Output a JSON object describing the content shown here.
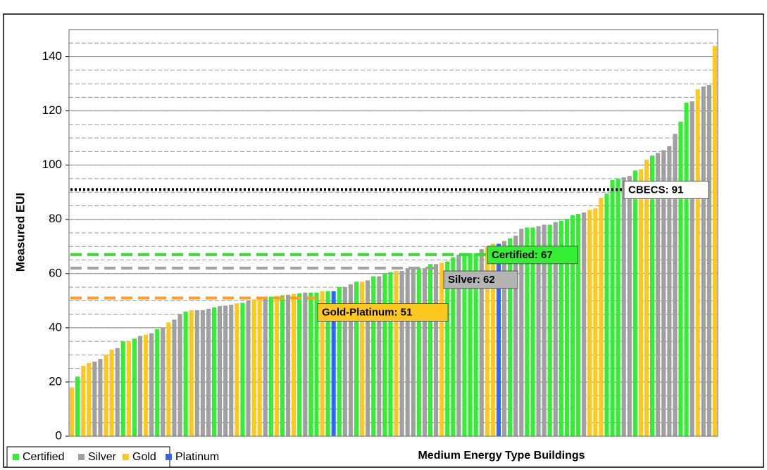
{
  "chart_data": {
    "type": "bar",
    "y_label": "Measured EUI",
    "x_label": "Medium Energy Type Buildings",
    "ylim": [
      0,
      150
    ],
    "yticks": [
      0,
      20,
      40,
      60,
      80,
      100,
      120,
      140
    ],
    "grid": true,
    "minor_grid_step": 5,
    "legend": "bottom-left",
    "series": [
      {
        "name": "Certified",
        "color": "#33ee33"
      },
      {
        "name": "Silver",
        "color": "#a0a0a0"
      },
      {
        "name": "Gold",
        "color": "#ffc81e"
      },
      {
        "name": "Platinum",
        "color": "#3366ff"
      }
    ],
    "values": [
      18,
      22,
      26,
      27,
      27.5,
      28.5,
      30,
      32,
      32.5,
      35,
      35,
      36,
      37,
      37.5,
      38,
      39.5,
      40,
      42,
      43,
      45,
      46,
      46.5,
      46.5,
      46.5,
      47,
      47.5,
      48,
      48.2,
      48.5,
      49,
      49.2,
      50,
      50.5,
      51,
      51.2,
      51.5,
      51.7,
      52,
      52.2,
      52.5,
      52.7,
      53,
      53,
      53,
      53.5,
      53.5,
      53.5,
      55,
      55,
      56,
      57,
      57,
      57.5,
      59,
      59,
      60,
      60.5,
      61,
      61,
      62,
      61.5,
      62,
      62,
      63.5,
      63.5,
      64,
      64.5,
      66,
      67,
      67.5,
      67.5,
      67.5,
      69,
      70,
      71,
      71,
      72,
      73,
      74,
      76.5,
      77,
      77,
      77.5,
      78,
      78,
      79,
      79.5,
      80,
      81.5,
      82,
      82.5,
      83.5,
      84,
      88,
      89.5,
      94.5,
      95,
      95.5,
      96,
      98,
      98.5,
      102,
      103.5,
      104.5,
      105.5,
      107,
      111.5,
      116,
      123,
      123.5,
      128,
      129,
      129.5,
      144
    ],
    "levels": [
      "Gold",
      "Certified",
      "Gold",
      "Gold",
      "Silver",
      "Silver",
      "Gold",
      "Gold",
      "Silver",
      "Certified",
      "Gold",
      "Certified",
      "Silver",
      "Gold",
      "Silver",
      "Certified",
      "Silver",
      "Gold",
      "Silver",
      "Silver",
      "Certified",
      "Gold",
      "Silver",
      "Silver",
      "Silver",
      "Certified",
      "Silver",
      "Silver",
      "Silver",
      "Gold",
      "Certified",
      "Silver",
      "Gold",
      "Gold",
      "Silver",
      "Certified",
      "Gold",
      "Certified",
      "Silver",
      "Gold",
      "Certified",
      "Silver",
      "Certified",
      "Certified",
      "Gold",
      "Certified",
      "Platinum",
      "Certified",
      "Silver",
      "Silver",
      "Certified",
      "Gold",
      "Silver",
      "Certified",
      "Silver",
      "Certified",
      "Certified",
      "Gold",
      "Silver",
      "Silver",
      "Silver",
      "Certified",
      "Silver",
      "Certified",
      "Silver",
      "Gold",
      "Certified",
      "Certified",
      "Silver",
      "Certified",
      "Certified",
      "Certified",
      "Silver",
      "Gold",
      "Gold",
      "Platinum",
      "Silver",
      "Certified",
      "Silver",
      "Silver",
      "Certified",
      "Certified",
      "Silver",
      "Silver",
      "Certified",
      "Silver",
      "Certified",
      "Certified",
      "Certified",
      "Certified",
      "Silver",
      "Gold",
      "Gold",
      "Gold",
      "Certified",
      "Certified",
      "Certified",
      "Silver",
      "Silver",
      "Certified",
      "Gold",
      "Gold",
      "Certified",
      "Silver",
      "Silver",
      "Silver",
      "Silver",
      "Certified",
      "Certified",
      "Silver",
      "Gold",
      "Silver",
      "Silver",
      "Gold"
    ],
    "reference_lines": [
      {
        "value": 91,
        "label": "CBECS: 91",
        "color": "#000000",
        "style": "dotted",
        "box": "#ffffff"
      },
      {
        "value": 67,
        "label": "Certified: 67",
        "color": "#33dd33",
        "style": "dashed",
        "box": "#33ee33"
      },
      {
        "value": 62,
        "label": "Silver: 62",
        "color": "#a0a0a0",
        "style": "dashed",
        "box": "#b4b4b4"
      },
      {
        "value": 51,
        "label": "Gold-Platinum: 51",
        "color": "#ffa020",
        "style": "dashed",
        "box": "#ffc81e"
      }
    ]
  }
}
